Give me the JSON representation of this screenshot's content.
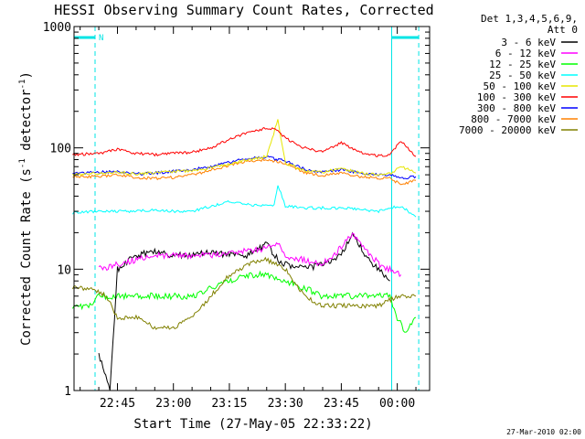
{
  "title": "HESSI Observing Summary Count Rates, Corrected",
  "xlabel": "Start Time (27-May-05 22:33:22)",
  "ylabel_main": "Corrected Count Rate (s",
  "ylabel_sup1": "-1",
  "ylabel_mid": " detector",
  "ylabel_sup2": "-1",
  "ylabel_end": ")",
  "legend_header": [
    "Det 1,3,4,5,6,9,",
    "Att 0"
  ],
  "footer": "27-Mar-2010 02:00",
  "night_marker": "N",
  "colors": {
    "axis": "#000000",
    "night": "#00e5e5"
  },
  "chart_data": {
    "type": "line",
    "yscale": "log",
    "ylim": [
      1,
      1000
    ],
    "xlim": [
      "22:33:22",
      "00:08:40"
    ],
    "y_ticks": [
      {
        "value": 1,
        "label": "1"
      },
      {
        "value": 10,
        "label": "10"
      },
      {
        "value": 100,
        "label": "100"
      },
      {
        "value": 1000,
        "label": "1000"
      }
    ],
    "x_ticks": [
      {
        "value": "22:45",
        "label": "22:45"
      },
      {
        "value": "23:00",
        "label": "23:00"
      },
      {
        "value": "23:15",
        "label": "23:15"
      },
      {
        "value": "23:30",
        "label": "23:30"
      },
      {
        "value": "23:45",
        "label": "23:45"
      },
      {
        "value": "00:00",
        "label": "00:00"
      }
    ],
    "night_intervals": [
      {
        "start": "22:33:22",
        "end": "22:39:00",
        "label": "N"
      },
      {
        "start": "23:58:30",
        "end": "00:05:45",
        "label": ""
      }
    ],
    "series": [
      {
        "name": "3 - 6 keV",
        "color": "#000000",
        "x": [
          "22:40",
          "22:43",
          "22:45",
          "22:50",
          "22:55",
          "23:00",
          "23:05",
          "23:10",
          "23:15",
          "23:20",
          "23:25",
          "23:28",
          "23:30",
          "23:35",
          "23:40",
          "23:45",
          "23:48",
          "23:52",
          "23:55",
          "23:58"
        ],
        "y": [
          2,
          1,
          10,
          13,
          14,
          13,
          13,
          14,
          13,
          13,
          16,
          12,
          11,
          10,
          11,
          13,
          20,
          12,
          10,
          8
        ]
      },
      {
        "name": "6 - 12 keV",
        "color": "#ff00ff",
        "x": [
          "22:40",
          "22:45",
          "22:50",
          "22:55",
          "23:00",
          "23:05",
          "23:10",
          "23:15",
          "23:20",
          "23:25",
          "23:28",
          "23:30",
          "23:35",
          "23:40",
          "23:45",
          "23:48",
          "23:52",
          "23:55",
          "23:58",
          "00:01"
        ],
        "y": [
          10,
          11,
          12,
          13,
          13,
          13,
          13,
          14,
          14,
          15,
          17,
          13,
          12,
          11,
          15,
          20,
          14,
          11,
          10,
          9
        ]
      },
      {
        "name": "12 - 25 keV",
        "color": "#00ff00",
        "x": [
          "22:33",
          "22:38",
          "22:40",
          "22:45",
          "22:50",
          "22:55",
          "23:00",
          "23:05",
          "23:10",
          "23:15",
          "23:20",
          "23:25",
          "23:30",
          "23:35",
          "23:40",
          "23:45",
          "23:50",
          "23:55",
          "23:58",
          "00:00",
          "00:02",
          "00:05"
        ],
        "y": [
          5,
          5,
          6,
          6,
          6,
          6,
          6,
          6,
          7,
          8,
          9,
          9,
          8,
          7,
          6,
          6,
          6,
          6,
          6,
          4,
          3,
          4
        ]
      },
      {
        "name": "25 - 50 keV",
        "color": "#00ffff",
        "x": [
          "22:33",
          "22:40",
          "22:45",
          "22:50",
          "22:55",
          "23:00",
          "23:05",
          "23:10",
          "23:15",
          "23:20",
          "23:25",
          "23:27",
          "23:28",
          "23:30",
          "23:35",
          "23:40",
          "23:45",
          "23:50",
          "23:55",
          "23:58",
          "00:01",
          "00:05"
        ],
        "y": [
          29,
          30,
          30,
          30,
          31,
          30,
          30,
          33,
          36,
          34,
          33,
          34,
          50,
          33,
          32,
          32,
          32,
          31,
          30,
          32,
          33,
          27
        ]
      },
      {
        "name": "50 - 100 keV",
        "color": "#e6e600",
        "x": [
          "22:33",
          "22:40",
          "22:45",
          "22:50",
          "22:55",
          "23:00",
          "23:05",
          "23:10",
          "23:15",
          "23:20",
          "23:25",
          "23:28",
          "23:30",
          "23:35",
          "23:40",
          "23:45",
          "23:50",
          "23:55",
          "23:58",
          "00:01",
          "00:05"
        ],
        "y": [
          60,
          62,
          63,
          61,
          62,
          64,
          65,
          68,
          74,
          80,
          85,
          170,
          75,
          65,
          63,
          68,
          62,
          60,
          61,
          70,
          62
        ]
      },
      {
        "name": "100 - 300 keV",
        "color": "#ff0000",
        "x": [
          "22:33",
          "22:40",
          "22:45",
          "22:50",
          "22:55",
          "23:00",
          "23:05",
          "23:10",
          "23:15",
          "23:20",
          "23:25",
          "23:28",
          "23:30",
          "23:35",
          "23:40",
          "23:45",
          "23:50",
          "23:55",
          "23:58",
          "00:01",
          "00:05"
        ],
        "y": [
          88,
          90,
          97,
          90,
          88,
          90,
          92,
          100,
          118,
          135,
          145,
          140,
          120,
          100,
          92,
          110,
          92,
          86,
          88,
          115,
          85
        ]
      },
      {
        "name": "300 - 800 keV",
        "color": "#0000ff",
        "x": [
          "22:33",
          "22:40",
          "22:45",
          "22:50",
          "22:55",
          "23:00",
          "23:05",
          "23:10",
          "23:15",
          "23:20",
          "23:25",
          "23:30",
          "23:35",
          "23:40",
          "23:45",
          "23:50",
          "23:55",
          "23:58",
          "00:01",
          "00:05"
        ],
        "y": [
          62,
          63,
          64,
          61,
          62,
          64,
          66,
          70,
          76,
          82,
          84,
          78,
          67,
          63,
          66,
          62,
          60,
          60,
          56,
          58
        ]
      },
      {
        "name": "800 - 7000 keV",
        "color": "#ff8000",
        "x": [
          "22:33",
          "22:40",
          "22:45",
          "22:50",
          "22:55",
          "23:00",
          "23:05",
          "23:10",
          "23:15",
          "23:20",
          "23:25",
          "23:30",
          "23:35",
          "23:40",
          "23:45",
          "23:50",
          "23:55",
          "23:58",
          "00:01",
          "00:05"
        ],
        "y": [
          58,
          58,
          60,
          57,
          56,
          57,
          60,
          65,
          72,
          78,
          80,
          75,
          63,
          59,
          62,
          58,
          56,
          56,
          50,
          54
        ]
      },
      {
        "name": "7000 - 20000 keV",
        "color": "#808000",
        "x": [
          "22:33",
          "22:38",
          "22:42",
          "22:45",
          "22:50",
          "22:55",
          "23:00",
          "23:05",
          "23:10",
          "23:15",
          "23:20",
          "23:25",
          "23:30",
          "23:35",
          "23:40",
          "23:45",
          "23:50",
          "23:55",
          "00:00",
          "00:05"
        ],
        "y": [
          7,
          7,
          6,
          4,
          4,
          3.3,
          3.3,
          4,
          6,
          9,
          11,
          12,
          10,
          6,
          5,
          5,
          5,
          5,
          6,
          6
        ]
      }
    ]
  }
}
